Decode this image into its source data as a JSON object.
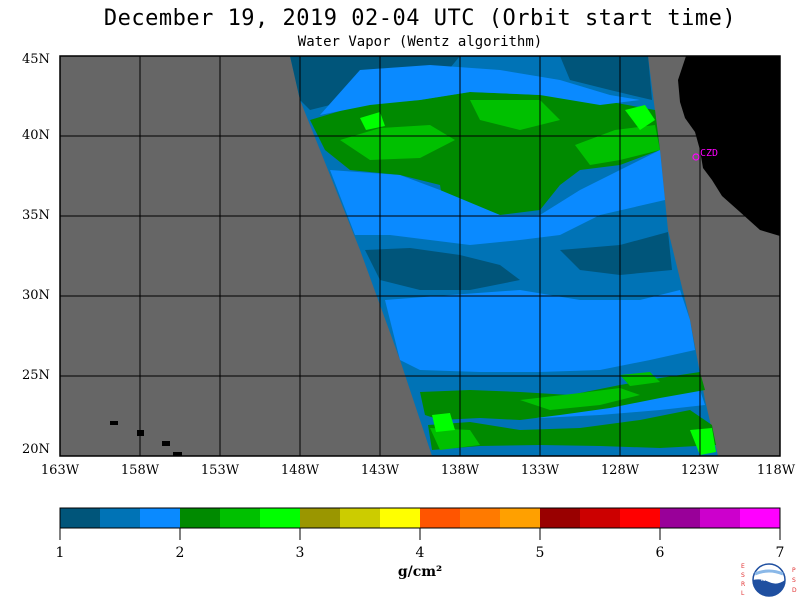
{
  "header": {
    "title": "December 19, 2019  02-04 UTC  (Orbit start time)",
    "subtitle": "Water Vapor (Wentz algorithm)"
  },
  "map": {
    "lat_labels": [
      "45N",
      "40N",
      "35N",
      "30N",
      "25N",
      "20N"
    ],
    "lon_labels": [
      "163W",
      "158W",
      "153W",
      "148W",
      "143W",
      "138W",
      "133W",
      "128W",
      "123W",
      "118W"
    ],
    "station_label": "CZD",
    "colors": {
      "no_data": "#666666",
      "land": "#000000",
      "grid": "#000000",
      "station": "#ff00ff"
    }
  },
  "colorbar": {
    "tick_labels": [
      "1",
      "2",
      "3",
      "4",
      "5",
      "6",
      "7"
    ],
    "units": "g/cm²",
    "colors": [
      "#00557a",
      "#0073b6",
      "#0a8aff",
      "#008a00",
      "#00c000",
      "#00ff00",
      "#9a9600",
      "#cccc00",
      "#ffff00",
      "#ff5500",
      "#ff7a00",
      "#ffa000",
      "#990000",
      "#cc0000",
      "#ff0000",
      "#990099",
      "#cc00cc",
      "#ff00ff"
    ]
  },
  "logo": {
    "left_letters": [
      "E",
      "S",
      "R",
      "L"
    ],
    "right_letters": [
      "P",
      "S",
      "D"
    ],
    "center_text": "NOAA"
  }
}
